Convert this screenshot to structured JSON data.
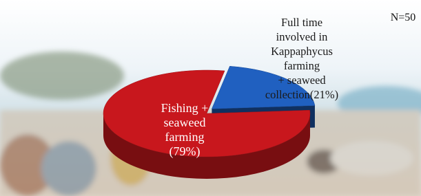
{
  "chart_data": {
    "type": "pie3d",
    "categories": [
      [
        "Fishing +",
        "seaweed",
        "farming"
      ],
      [
        "Full time",
        "involved in",
        "Kappaphycus",
        "farming",
        "+ seaweed",
        "collection"
      ]
    ],
    "values": [
      79,
      21
    ],
    "value_labels": [
      "(79%)",
      "(21%)"
    ],
    "colors": [
      "#c8171d",
      "#2060c0"
    ],
    "label_colors": [
      "#ffffff",
      "#1a1a1a"
    ],
    "annotation": "N=50"
  }
}
